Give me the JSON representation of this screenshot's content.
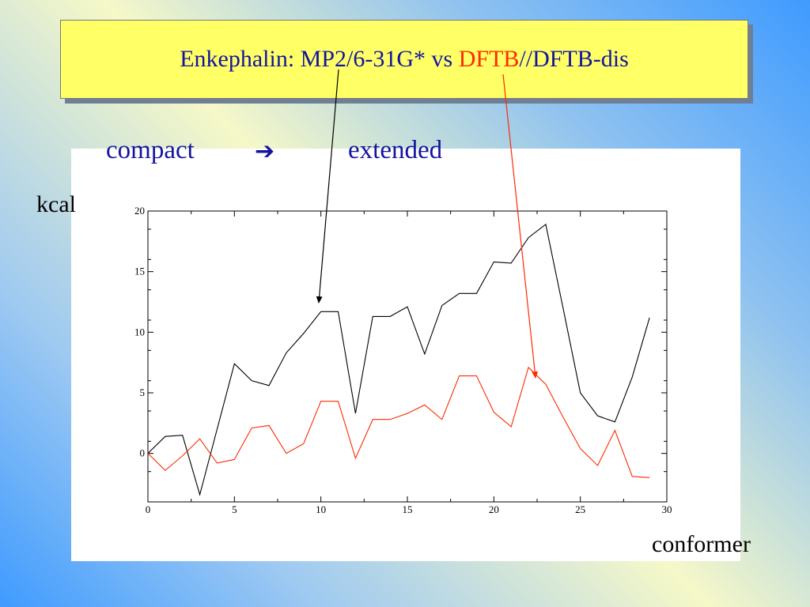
{
  "slide": {
    "title_parts": [
      "Enkephalin: MP2/6-31G* vs ",
      "DFTB",
      "//DFTB-dis"
    ],
    "subtitle_left": "compact",
    "subtitle_arrow": "➔",
    "subtitle_right": "extended",
    "ylabel": "kcal",
    "xlabel": "conformer"
  },
  "colors": {
    "title_text": "#1414a0",
    "title_highlight": "#ff2a00",
    "title_bg": "#ffff66",
    "series_black": "#000000",
    "series_red": "#ff2a00"
  },
  "chart_data": {
    "type": "line",
    "title": "Enkephalin: MP2/6-31G* vs DFTB//DFTB-dis",
    "xlabel": "conformer",
    "ylabel": "kcal",
    "xlim": [
      0,
      30
    ],
    "ylim": [
      -4,
      20
    ],
    "xticks": [
      0,
      5,
      10,
      15,
      20,
      25,
      30
    ],
    "yticks": [
      0,
      5,
      10,
      15,
      20
    ],
    "grid": false,
    "x": [
      0,
      1,
      2,
      3,
      4,
      5,
      6,
      7,
      8,
      9,
      10,
      11,
      12,
      13,
      14,
      15,
      16,
      17,
      18,
      19,
      20,
      21,
      22,
      23,
      24,
      25,
      26,
      27,
      28,
      29
    ],
    "series": [
      {
        "color": "#000000",
        "values": [
          0,
          1.4,
          1.5,
          -3.4,
          2,
          7.4,
          6,
          5.6,
          8.3,
          9.9,
          11.7,
          11.7,
          3.3,
          11.3,
          11.3,
          12.1,
          8.2,
          12.2,
          13.2,
          13.2,
          15.8,
          15.7,
          17.8,
          18.9,
          12,
          5,
          3.1,
          2.6,
          6.3,
          11.2
        ]
      },
      {
        "color": "#ff2a00",
        "values": [
          0,
          -1.4,
          -0.2,
          1.2,
          -0.8,
          -0.5,
          2.1,
          2.3,
          0,
          0.8,
          4.3,
          4.3,
          -0.4,
          2.8,
          2.8,
          3.3,
          4,
          2.8,
          6.4,
          6.4,
          3.4,
          2.2,
          7.1,
          5.7,
          3,
          0.4,
          -1,
          1.9,
          -1.9,
          -2
        ]
      }
    ]
  }
}
